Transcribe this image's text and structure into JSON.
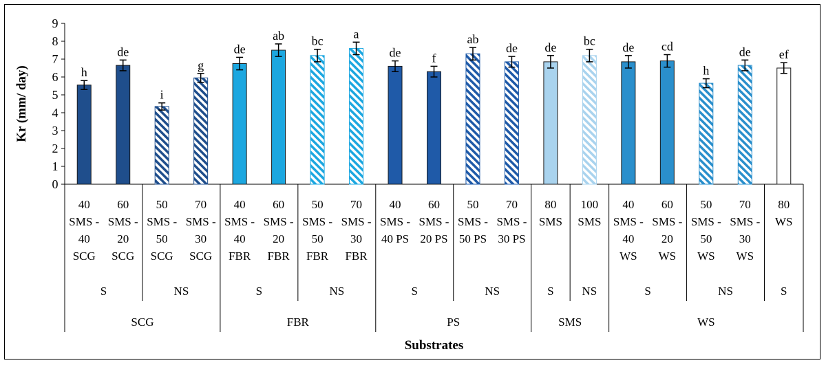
{
  "chart_data": {
    "type": "bar",
    "ylabel": "Kr (mm/ day)",
    "xlabel": "Substrates",
    "ylim": [
      0,
      9
    ],
    "ytick_step": 1,
    "grid": false,
    "legend": "none",
    "bars": [
      {
        "label": [
          "40",
          "SMS -",
          "40",
          "SCG"
        ],
        "value": 5.55,
        "error": 0.25,
        "letter": "h",
        "fill": "solid",
        "color": "#1f4e8c"
      },
      {
        "label": [
          "60",
          "SMS -",
          "20",
          "SCG"
        ],
        "value": 6.65,
        "error": 0.3,
        "letter": "de",
        "fill": "solid",
        "color": "#1f4e8c"
      },
      {
        "label": [
          "50",
          "SMS -",
          "50",
          "SCG"
        ],
        "value": 4.35,
        "error": 0.2,
        "letter": "i",
        "fill": "hatched",
        "color": "#1f4e8c"
      },
      {
        "label": [
          "70",
          "SMS -",
          "30",
          "SCG"
        ],
        "value": 5.95,
        "error": 0.25,
        "letter": "g",
        "fill": "hatched",
        "color": "#1f4e8c"
      },
      {
        "label": [
          "40",
          "SMS -",
          "40",
          "FBR"
        ],
        "value": 6.75,
        "error": 0.35,
        "letter": "de",
        "fill": "solid",
        "color": "#1ca7e0"
      },
      {
        "label": [
          "60",
          "SMS -",
          "20",
          "FBR"
        ],
        "value": 7.5,
        "error": 0.35,
        "letter": "ab",
        "fill": "solid",
        "color": "#1ca7e0"
      },
      {
        "label": [
          "50",
          "SMS -",
          "50",
          "FBR"
        ],
        "value": 7.2,
        "error": 0.35,
        "letter": "bc",
        "fill": "hatched",
        "color": "#1ca7e0"
      },
      {
        "label": [
          "70",
          "SMS -",
          "30",
          "FBR"
        ],
        "value": 7.6,
        "error": 0.35,
        "letter": "a",
        "fill": "hatched",
        "color": "#1ca7e0"
      },
      {
        "label": [
          "40",
          "SMS -",
          "40 PS"
        ],
        "value": 6.6,
        "error": 0.3,
        "letter": "de",
        "fill": "solid",
        "color": "#1f5aa8"
      },
      {
        "label": [
          "60",
          "SMS -",
          "20 PS"
        ],
        "value": 6.3,
        "error": 0.3,
        "letter": "f",
        "fill": "solid",
        "color": "#1f5aa8"
      },
      {
        "label": [
          "50",
          "SMS -",
          "50 PS"
        ],
        "value": 7.3,
        "error": 0.35,
        "letter": "ab",
        "fill": "hatched",
        "color": "#1f5aa8"
      },
      {
        "label": [
          "70",
          "SMS -",
          "30 PS"
        ],
        "value": 6.85,
        "error": 0.3,
        "letter": "de",
        "fill": "hatched",
        "color": "#1f5aa8"
      },
      {
        "label": [
          "80",
          "SMS"
        ],
        "value": 6.85,
        "error": 0.35,
        "letter": "de",
        "fill": "solid",
        "color": "#a9d3ee"
      },
      {
        "label": [
          "100",
          "SMS"
        ],
        "value": 7.2,
        "error": 0.35,
        "letter": "bc",
        "fill": "hatched",
        "color": "#a9d3ee"
      },
      {
        "label": [
          "40",
          "SMS -",
          "40",
          "WS"
        ],
        "value": 6.85,
        "error": 0.35,
        "letter": "de",
        "fill": "solid",
        "color": "#2a8fcc"
      },
      {
        "label": [
          "60",
          "SMS -",
          "20",
          "WS"
        ],
        "value": 6.9,
        "error": 0.35,
        "letter": "cd",
        "fill": "solid",
        "color": "#2a8fcc"
      },
      {
        "label": [
          "50",
          "SMS -",
          "50",
          "WS"
        ],
        "value": 5.65,
        "error": 0.25,
        "letter": "h",
        "fill": "hatched",
        "color": "#2a8fcc"
      },
      {
        "label": [
          "70",
          "SMS -",
          "30",
          "WS"
        ],
        "value": 6.65,
        "error": 0.3,
        "letter": "de",
        "fill": "hatched",
        "color": "#2a8fcc"
      },
      {
        "label": [
          "80",
          "WS"
        ],
        "value": 6.5,
        "error": 0.3,
        "letter": "ef",
        "fill": "solid",
        "color": "#ffffff"
      }
    ],
    "level2": [
      {
        "label": "S",
        "span": [
          0,
          1
        ]
      },
      {
        "label": "NS",
        "span": [
          2,
          3
        ]
      },
      {
        "label": "S",
        "span": [
          4,
          5
        ]
      },
      {
        "label": "NS",
        "span": [
          6,
          7
        ]
      },
      {
        "label": "S",
        "span": [
          8,
          9
        ]
      },
      {
        "label": "NS",
        "span": [
          10,
          11
        ]
      },
      {
        "label": "S",
        "span": [
          12,
          12
        ]
      },
      {
        "label": "NS",
        "span": [
          13,
          13
        ]
      },
      {
        "label": "S",
        "span": [
          14,
          15
        ]
      },
      {
        "label": "NS",
        "span": [
          16,
          17
        ]
      },
      {
        "label": "S",
        "span": [
          18,
          18
        ]
      }
    ],
    "level3": [
      {
        "label": "SCG",
        "span": [
          0,
          3
        ]
      },
      {
        "label": "FBR",
        "span": [
          4,
          7
        ]
      },
      {
        "label": "PS",
        "span": [
          8,
          11
        ]
      },
      {
        "label": "SMS",
        "span": [
          12,
          13
        ]
      },
      {
        "label": "WS",
        "span": [
          14,
          18
        ]
      }
    ]
  }
}
